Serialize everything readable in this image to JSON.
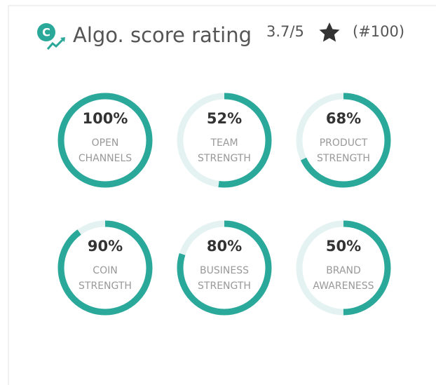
{
  "header": {
    "title": "Algo. score rating",
    "score": "3.7/5",
    "rank": "(#100)"
  },
  "gauges": [
    {
      "value": 100,
      "value_label": "100%",
      "label": [
        "OPEN",
        "CHANNELS"
      ]
    },
    {
      "value": 52,
      "value_label": "52%",
      "label": [
        "TEAM",
        "STRENGTH"
      ]
    },
    {
      "value": 68,
      "value_label": "68%",
      "label": [
        "PRODUCT",
        "STRENGTH"
      ]
    },
    {
      "value": 90,
      "value_label": "90%",
      "label": [
        "COIN",
        "STRENGTH"
      ]
    },
    {
      "value": 80,
      "value_label": "80%",
      "label": [
        "BUSINESS",
        "STRENGTH"
      ]
    },
    {
      "value": 50,
      "value_label": "50%",
      "label": [
        "BRAND",
        "AWARENESS"
      ]
    }
  ]
}
